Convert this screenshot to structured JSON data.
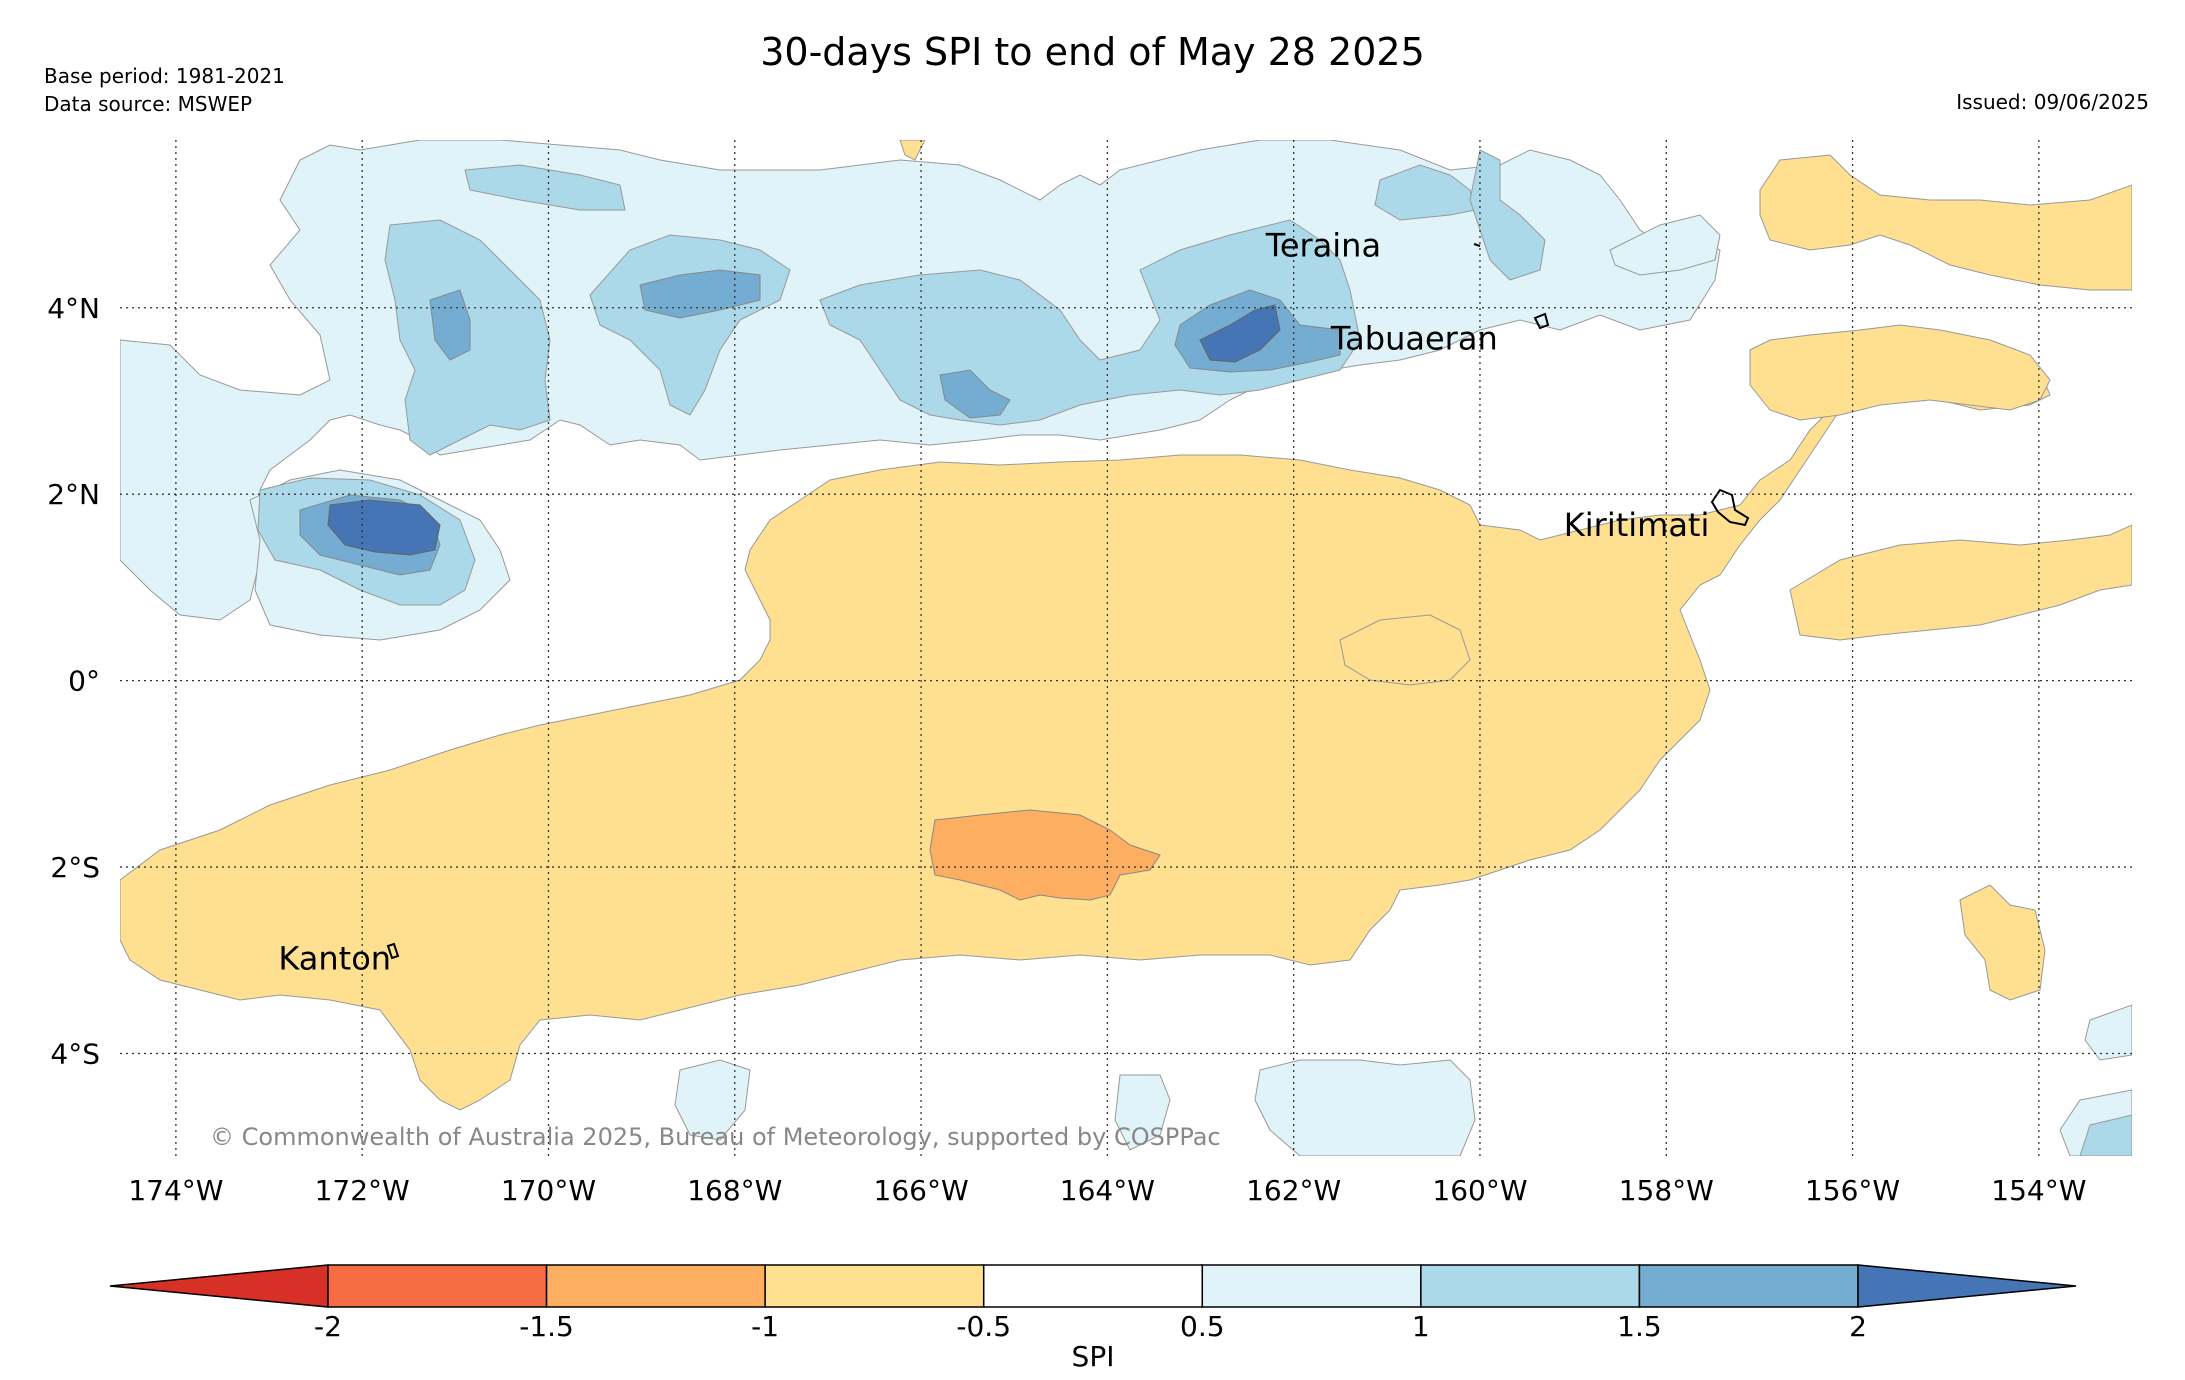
{
  "title": "30-days SPI to end of May 28 2025",
  "base_period": "Base period: 1981-2021",
  "data_source": "Data source: MSWEP",
  "issued": "Issued: 09/06/2025",
  "copyright": "© Commonwealth of Australia 2025, Bureau of Meteorology, supported by COSPPac",
  "map": {
    "lon_range": [
      -174.6,
      -153.0
    ],
    "lat_range": [
      -5.1,
      5.8
    ],
    "lon_ticks": [
      {
        "value": -174,
        "label": "174°W"
      },
      {
        "value": -172,
        "label": "172°W"
      },
      {
        "value": -170,
        "label": "170°W"
      },
      {
        "value": -168,
        "label": "168°W"
      },
      {
        "value": -166,
        "label": "166°W"
      },
      {
        "value": -164,
        "label": "164°W"
      },
      {
        "value": -162,
        "label": "162°W"
      },
      {
        "value": -160,
        "label": "160°W"
      },
      {
        "value": -158,
        "label": "158°W"
      },
      {
        "value": -156,
        "label": "156°W"
      },
      {
        "value": -154,
        "label": "154°W"
      }
    ],
    "lat_ticks": [
      {
        "value": 4,
        "label": "4°N"
      },
      {
        "value": 2,
        "label": "2°N"
      },
      {
        "value": 0,
        "label": "0°"
      },
      {
        "value": -2,
        "label": "2°S"
      },
      {
        "value": -4,
        "label": "4°S"
      }
    ],
    "places": [
      {
        "name": "Teraina",
        "lon": -162.3,
        "lat": 4.55
      },
      {
        "name": "Tabuaeran",
        "lon": -161.6,
        "lat": 3.55
      },
      {
        "name": "Kiritimati",
        "lon": -159.1,
        "lat": 1.55
      },
      {
        "name": "Kanton",
        "lon": -172.9,
        "lat": -3.1
      }
    ]
  },
  "colorbar": {
    "title": "SPI",
    "ticks": [
      "-2",
      "-1.5",
      "-1",
      "-0.5",
      "0.5",
      "1",
      "1.5",
      "2"
    ],
    "colors": [
      "#d73027",
      "#f46d43",
      "#fdae61",
      "#fee090",
      "#ffffff",
      "#e0f3f8",
      "#abd9e9",
      "#74add1",
      "#4575b4"
    ]
  }
}
